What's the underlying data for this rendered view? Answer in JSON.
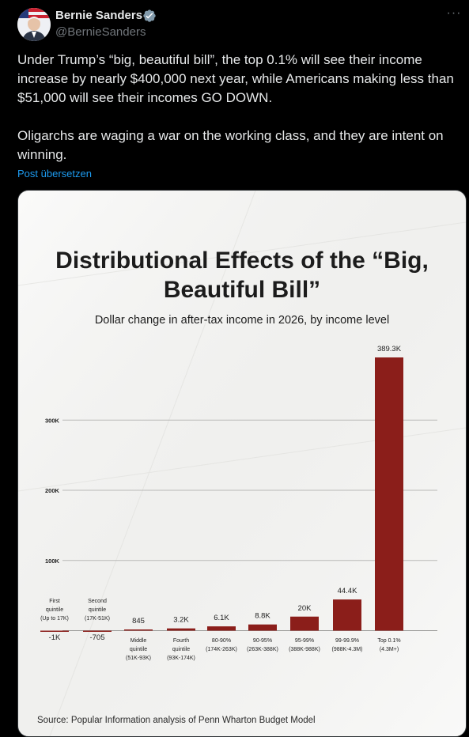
{
  "tweet": {
    "author_name": "Bernie Sanders",
    "author_handle": "@BernieSanders",
    "paragraphs": [
      "Under Trump’s “big, beautiful bill”, the top 0.1% will see their income increase by nearly $400,000 next year, while Americans making less than $51,000 will see their incomes GO DOWN.",
      "Oligarchs are waging a war on the working class, and they are intent on winning."
    ],
    "translate_label": "Post übersetzen"
  },
  "colors": {
    "background": "#000000",
    "text": "#e7e9ea",
    "secondary": "#71767b",
    "link": "#1d9bf0",
    "verified": "#829aab",
    "bar": "#8b1e1a",
    "paper": "#f3f3f1"
  },
  "icons": {
    "verified": "verified-badge-icon",
    "more": "more-options-icon"
  },
  "chart_data": {
    "type": "bar",
    "title": "Distributional Effects of the “Big, Beautiful Bill”",
    "subtitle": "Dollar change in after-tax income in 2026, by income level",
    "source": "Source: Popular Information analysis of Penn Wharton Budget Model",
    "grid": true,
    "ylim": [
      -2000,
      400000
    ],
    "yticks": [
      {
        "value": 100000,
        "label": "100K"
      },
      {
        "value": 200000,
        "label": "200K"
      },
      {
        "value": 300000,
        "label": "300K"
      }
    ],
    "categories": [
      {
        "lines": [
          "First",
          "quintile",
          "(Up to 17K)"
        ],
        "value": -1000,
        "value_label": "-1K"
      },
      {
        "lines": [
          "Second",
          "quintile",
          "(17K-51K)"
        ],
        "value": -705,
        "value_label": "-705"
      },
      {
        "lines": [
          "Middle",
          "quintile",
          "(51K-93K)"
        ],
        "value": 845,
        "value_label": "845"
      },
      {
        "lines": [
          "Fourth",
          "quintile",
          "(93K-174K)"
        ],
        "value": 3200,
        "value_label": "3.2K"
      },
      {
        "lines": [
          "80-90%",
          "(174K-263K)"
        ],
        "value": 6100,
        "value_label": "6.1K"
      },
      {
        "lines": [
          "90-95%",
          "(263K-388K)"
        ],
        "value": 8800,
        "value_label": "8.8K"
      },
      {
        "lines": [
          "95-99%",
          "(388K-988K)"
        ],
        "value": 20000,
        "value_label": "20K"
      },
      {
        "lines": [
          "99-99.9%",
          "(988K-4.3M)"
        ],
        "value": 44400,
        "value_label": "44.4K"
      },
      {
        "lines": [
          "Top 0.1%",
          "(4.3M+)"
        ],
        "value": 389300,
        "value_label": "389.3K"
      }
    ]
  }
}
